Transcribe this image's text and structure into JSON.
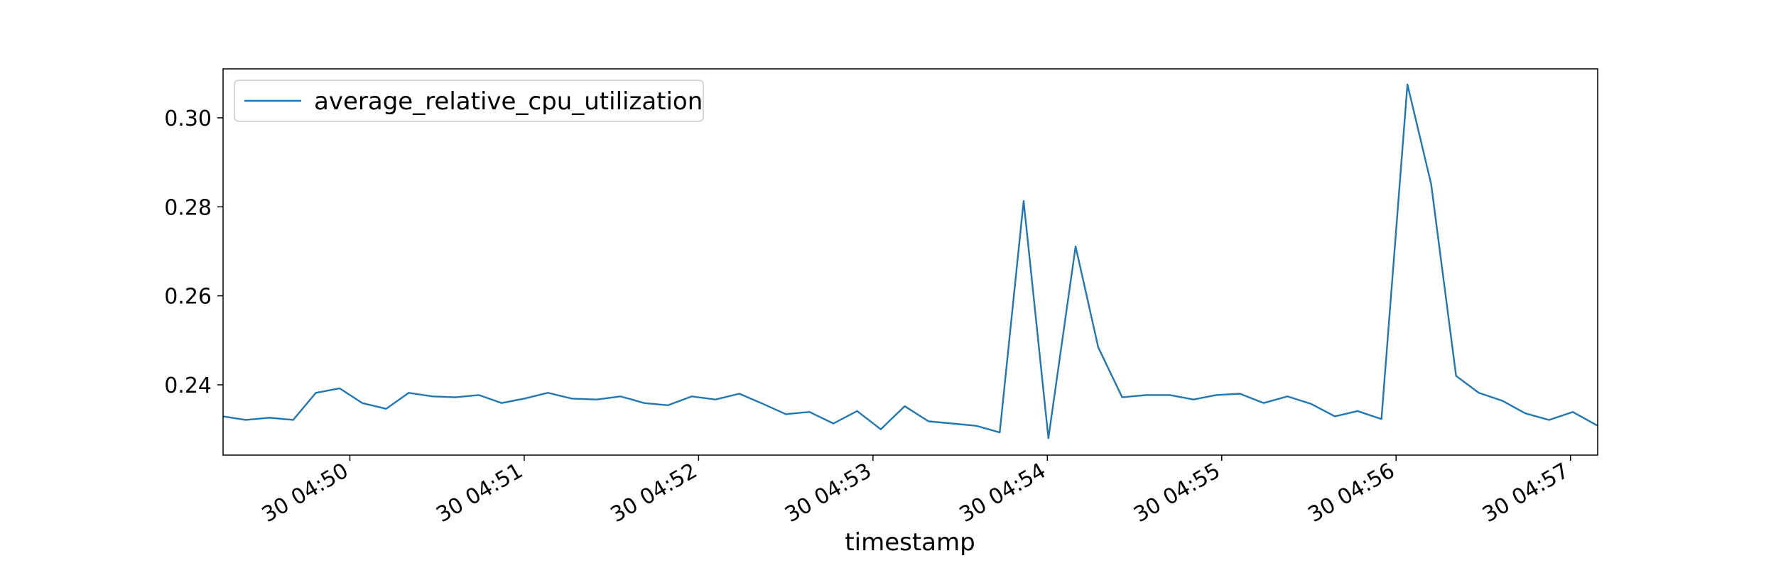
{
  "chart_data": {
    "type": "line",
    "x_label": "timestamp",
    "x": [
      49.273,
      49.403,
      49.539,
      49.675,
      49.805,
      49.942,
      50.071,
      50.208,
      50.338,
      50.474,
      50.604,
      50.74,
      50.87,
      51.0,
      51.136,
      51.273,
      51.416,
      51.552,
      51.688,
      51.825,
      51.961,
      52.097,
      52.234,
      52.37,
      52.5,
      52.636,
      52.773,
      52.909,
      53.045,
      53.182,
      53.318,
      53.455,
      53.591,
      53.727,
      53.864,
      54.006,
      54.162,
      54.292,
      54.429,
      54.565,
      54.701,
      54.838,
      54.968,
      55.104,
      55.24,
      55.377,
      55.513,
      55.649,
      55.779,
      55.916,
      56.065,
      56.201,
      56.344,
      56.474,
      56.61,
      56.74,
      56.877,
      57.013,
      57.156
    ],
    "series": [
      {
        "name": "average_relative_cpu_utilization",
        "color": "#1f77b4",
        "values": [
          0.2329,
          0.2321,
          0.2326,
          0.2321,
          0.2382,
          0.2392,
          0.2359,
          0.2346,
          0.2382,
          0.2374,
          0.2372,
          0.2377,
          0.2359,
          0.2369,
          0.2382,
          0.2369,
          0.2367,
          0.2374,
          0.2359,
          0.2354,
          0.2374,
          0.2367,
          0.238,
          0.2357,
          0.2334,
          0.2339,
          0.2313,
          0.2341,
          0.23,
          0.2352,
          0.2318,
          0.2313,
          0.2308,
          0.2293,
          0.2813,
          0.228,
          0.2711,
          0.2484,
          0.2372,
          0.2377,
          0.2377,
          0.2367,
          0.2377,
          0.238,
          0.2359,
          0.2374,
          0.2357,
          0.2329,
          0.2341,
          0.2323,
          0.3075,
          0.2851,
          0.242,
          0.2382,
          0.2364,
          0.2336,
          0.2321,
          0.2339,
          0.2308
        ]
      }
    ],
    "xlim": [
      49.273,
      57.156
    ],
    "xticks": [
      {
        "value": 50,
        "label": "30 04:50"
      },
      {
        "value": 51,
        "label": "30 04:51"
      },
      {
        "value": 52,
        "label": "30 04:52"
      },
      {
        "value": 53,
        "label": "30 04:53"
      },
      {
        "value": 54,
        "label": "30 04:54"
      },
      {
        "value": 55,
        "label": "30 04:55"
      },
      {
        "value": 56,
        "label": "30 04:56"
      },
      {
        "value": 57,
        "label": "30 04:57"
      }
    ],
    "ylim": [
      0.2242,
      0.311
    ],
    "yticks": [
      {
        "value": 0.24,
        "label": "0.24"
      },
      {
        "value": 0.26,
        "label": "0.26"
      },
      {
        "value": 0.28,
        "label": "0.28"
      },
      {
        "value": 0.3,
        "label": "0.30"
      }
    ],
    "grid": false,
    "legend": "upper left"
  }
}
